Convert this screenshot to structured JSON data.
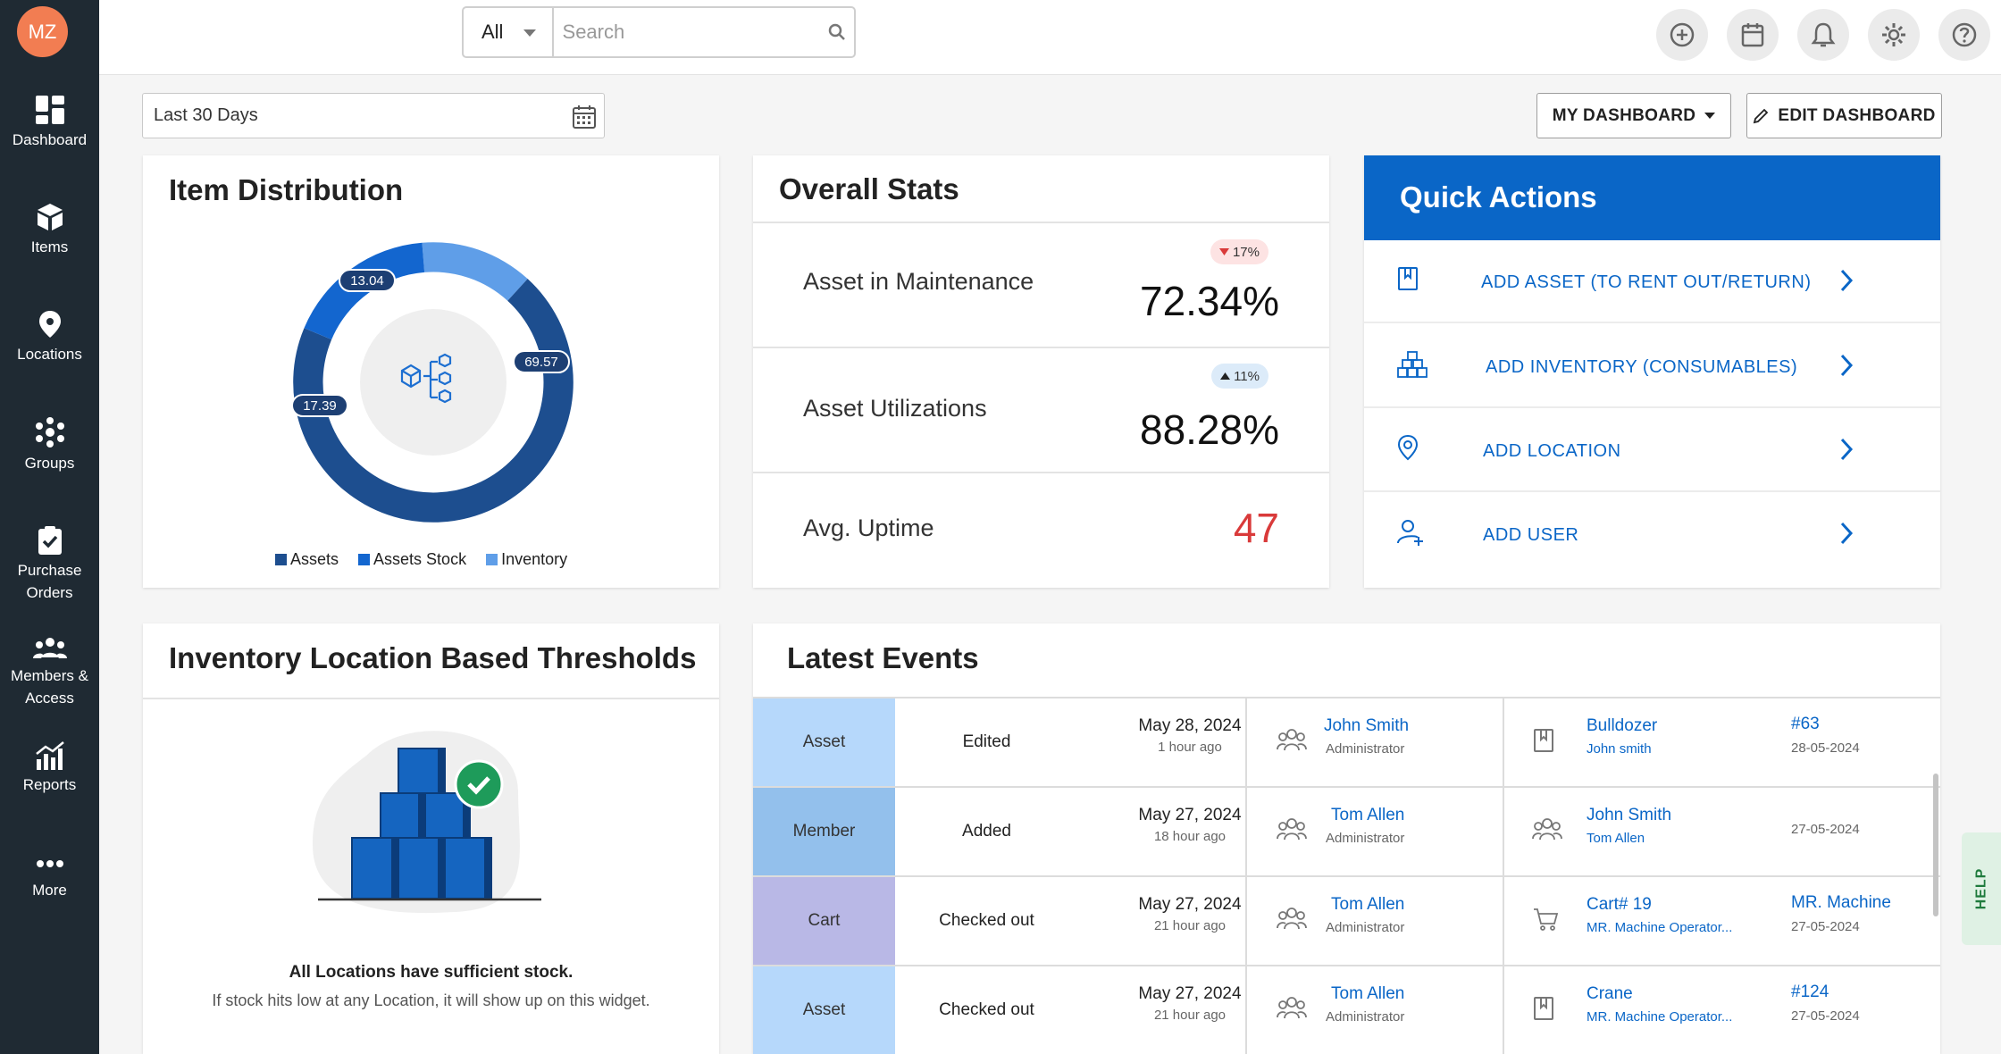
{
  "user": {
    "initials": "MZ"
  },
  "sidebar": {
    "items": [
      {
        "label": "Dashboard",
        "icon": "dashboard-icon"
      },
      {
        "label": "Items",
        "icon": "box-icon"
      },
      {
        "label": "Locations",
        "icon": "location-pin-icon"
      },
      {
        "label": "Groups",
        "icon": "groups-icon"
      },
      {
        "label": "Purchase Orders",
        "icon": "clipboard-check-icon"
      },
      {
        "label": "Members & Access",
        "icon": "members-icon"
      },
      {
        "label": "Reports",
        "icon": "reports-icon"
      },
      {
        "label": "More",
        "icon": "more-icon"
      }
    ]
  },
  "search": {
    "scope": "All",
    "placeholder": "Search"
  },
  "toolbar": {
    "date_range": "Last 30 Days",
    "my_dashboard": "MY DASHBOARD",
    "edit_dashboard": "EDIT DASHBOARD"
  },
  "item_distribution": {
    "title": "Item Distribution",
    "chart_data": {
      "type": "pie",
      "series": [
        {
          "name": "Assets",
          "value": 69.57,
          "color": "#1d4e8f"
        },
        {
          "name": "Assets Stock",
          "value": 17.39,
          "color": "#1366cf"
        },
        {
          "name": "Inventory",
          "value": 13.04,
          "color": "#5f9ee8"
        }
      ]
    },
    "labels": {
      "assets": "69.57",
      "assets_stock": "17.39",
      "inventory": "13.04"
    },
    "legend": {
      "assets": "Assets",
      "assets_stock": "Assets Stock",
      "inventory": "Inventory"
    }
  },
  "overall_stats": {
    "title": "Overall Stats",
    "maintenance": {
      "label": "Asset in Maintenance",
      "value": "72.34%",
      "change": "17%",
      "direction": "down"
    },
    "utilization": {
      "label": "Asset Utilizations",
      "value": "88.28%",
      "change": "11%",
      "direction": "up"
    },
    "uptime": {
      "label": "Avg. Uptime",
      "value": "47"
    }
  },
  "quick_actions": {
    "title": "Quick Actions",
    "items": [
      {
        "label": "ADD ASSET (TO RENT OUT/RETURN)",
        "icon": "asset-tag-icon"
      },
      {
        "label": "ADD INVENTORY (CONSUMABLES)",
        "icon": "inventory-boxes-icon"
      },
      {
        "label": "ADD LOCATION",
        "icon": "location-pin-icon"
      },
      {
        "label": "ADD USER",
        "icon": "add-user-icon"
      }
    ]
  },
  "thresholds": {
    "title": "Inventory Location Based Thresholds",
    "message": "All Locations have sufficient stock.",
    "sub": "If stock hits low at any Location, it will show up on this widget."
  },
  "events": {
    "title": "Latest Events",
    "rows": [
      {
        "type": "Asset",
        "type_color": "#b6d8fb",
        "action": "Edited",
        "date": "May 28, 2024",
        "ago": "1 hour ago",
        "user": "John Smith",
        "role": "Administrator",
        "obj": "Bulldozer",
        "obj_sub": "John smith",
        "ref": "#63",
        "ref_date": "28-05-2024",
        "obj_icon": "asset-tag-icon"
      },
      {
        "type": "Member",
        "type_color": "#93c0ec",
        "action": "Added",
        "date": "May 27, 2024",
        "ago": "18 hour ago",
        "user": "Tom Allen",
        "role": "Administrator",
        "obj": "John Smith",
        "obj_sub": "Tom Allen",
        "ref": "",
        "ref_date": "27-05-2024",
        "obj_icon": "members-icon"
      },
      {
        "type": "Cart",
        "type_color": "#b9b8e6",
        "action": "Checked out",
        "date": "May 27, 2024",
        "ago": "21 hour ago",
        "user": "Tom Allen",
        "role": "Administrator",
        "obj": "Cart# 19",
        "obj_sub": "MR. Machine Operator...",
        "ref": "MR. Machine",
        "ref_date": "27-05-2024",
        "obj_icon": "cart-icon"
      },
      {
        "type": "Asset",
        "type_color": "#b6d8fb",
        "action": "Checked out",
        "date": "May 27, 2024",
        "ago": "21 hour ago",
        "user": "Tom Allen",
        "role": "Administrator",
        "obj": "Crane",
        "obj_sub": "MR. Machine Operator...",
        "ref": "#124",
        "ref_date": "27-05-2024",
        "obj_icon": "asset-tag-icon"
      }
    ]
  },
  "help": {
    "label": "HELP"
  },
  "colors": {
    "brand": "#0a66c7",
    "sidebar": "#1f2a33",
    "avatar": "#f27d52",
    "negative": "#d93a3a"
  }
}
